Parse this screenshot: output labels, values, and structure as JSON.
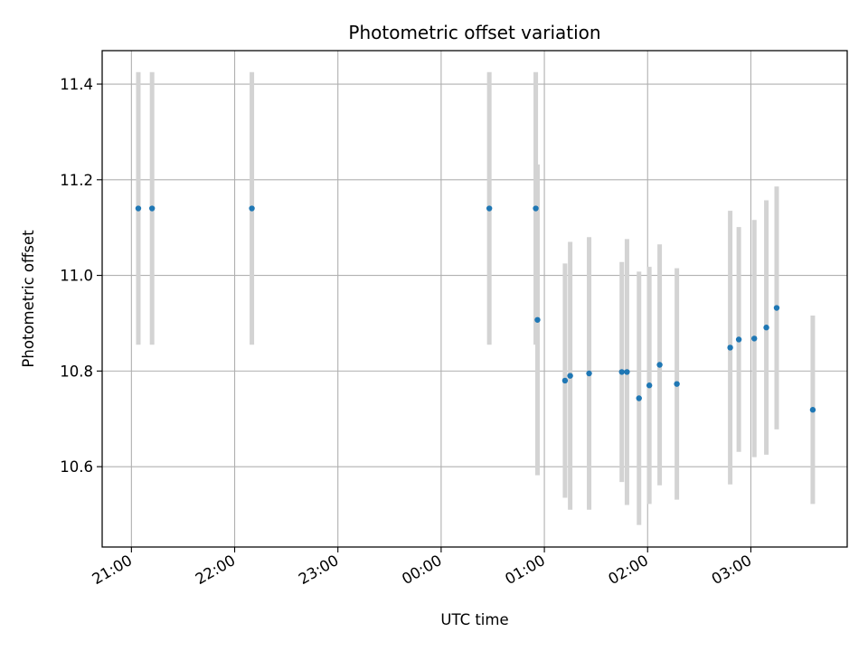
{
  "chart_data": {
    "type": "scatter",
    "title": "Photometric offset variation",
    "xlabel": "UTC time",
    "ylabel": "Photometric offset",
    "x_axis_kind": "time (hours, UTC)",
    "xlim": [
      "20:43",
      "27:56"
    ],
    "ylim": [
      10.432,
      11.47
    ],
    "grid": true,
    "x_ticks": [
      "21:00",
      "22:00",
      "23:00",
      "00:00",
      "01:00",
      "02:00",
      "03:00"
    ],
    "y_ticks": [
      "10.6",
      "10.8",
      "11.0",
      "11.2",
      "11.4"
    ],
    "y_tick_values": [
      10.6,
      10.8,
      11.0,
      11.2,
      11.4
    ],
    "colors": {
      "point": "#1f77b4",
      "errorbar": "#d3d3d3",
      "grid": "#b0b0b0"
    },
    "points": [
      {
        "x": "21:04",
        "y": 11.14,
        "err": 0.285
      },
      {
        "x": "21:12",
        "y": 11.14,
        "err": 0.285
      },
      {
        "x": "22:10",
        "y": 11.14,
        "err": 0.285
      },
      {
        "x": "00:28",
        "y": 11.14,
        "err": 0.285
      },
      {
        "x": "00:55",
        "y": 11.14,
        "err": 0.285
      },
      {
        "x": "00:56",
        "y": 10.907,
        "err": 0.325
      },
      {
        "x": "01:12",
        "y": 10.78,
        "err": 0.245
      },
      {
        "x": "01:15",
        "y": 10.79,
        "err": 0.28
      },
      {
        "x": "01:26",
        "y": 10.795,
        "err": 0.285
      },
      {
        "x": "01:45",
        "y": 10.798,
        "err": 0.23
      },
      {
        "x": "01:48",
        "y": 10.798,
        "err": 0.278
      },
      {
        "x": "01:55",
        "y": 10.743,
        "err": 0.265
      },
      {
        "x": "02:01",
        "y": 10.77,
        "err": 0.248
      },
      {
        "x": "02:07",
        "y": 10.813,
        "err": 0.252
      },
      {
        "x": "02:17",
        "y": 10.773,
        "err": 0.242
      },
      {
        "x": "02:48",
        "y": 10.849,
        "err": 0.286
      },
      {
        "x": "02:53",
        "y": 10.866,
        "err": 0.235
      },
      {
        "x": "03:02",
        "y": 10.868,
        "err": 0.248
      },
      {
        "x": "03:09",
        "y": 10.891,
        "err": 0.266
      },
      {
        "x": "03:15",
        "y": 10.932,
        "err": 0.254
      },
      {
        "x": "03:36",
        "y": 10.719,
        "err": 0.197
      }
    ]
  }
}
